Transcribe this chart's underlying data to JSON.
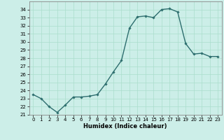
{
  "x": [
    0,
    1,
    2,
    3,
    4,
    5,
    6,
    7,
    8,
    9,
    10,
    11,
    12,
    13,
    14,
    15,
    16,
    17,
    18,
    19,
    20,
    21,
    22,
    23
  ],
  "y": [
    23.5,
    23.0,
    22.0,
    21.3,
    22.2,
    23.2,
    23.2,
    23.3,
    23.5,
    24.8,
    26.3,
    27.7,
    31.7,
    33.1,
    33.2,
    33.0,
    34.0,
    34.1,
    33.7,
    29.8,
    28.5,
    28.6,
    28.2,
    28.2
  ],
  "ylim": [
    21,
    35
  ],
  "yticks": [
    21,
    22,
    23,
    24,
    25,
    26,
    27,
    28,
    29,
    30,
    31,
    32,
    33,
    34
  ],
  "xlim": [
    -0.5,
    23.5
  ],
  "xticks": [
    0,
    1,
    2,
    3,
    4,
    5,
    6,
    7,
    8,
    9,
    10,
    11,
    12,
    13,
    14,
    15,
    16,
    17,
    18,
    19,
    20,
    21,
    22,
    23
  ],
  "xlabel": "Humidex (Indice chaleur)",
  "line_color": "#2d6e6e",
  "marker": "D",
  "marker_size": 1.8,
  "bg_color": "#cceee8",
  "grid_color": "#aaddcc",
  "line_width": 1.0,
  "tick_fontsize": 5,
  "xlabel_fontsize": 6
}
